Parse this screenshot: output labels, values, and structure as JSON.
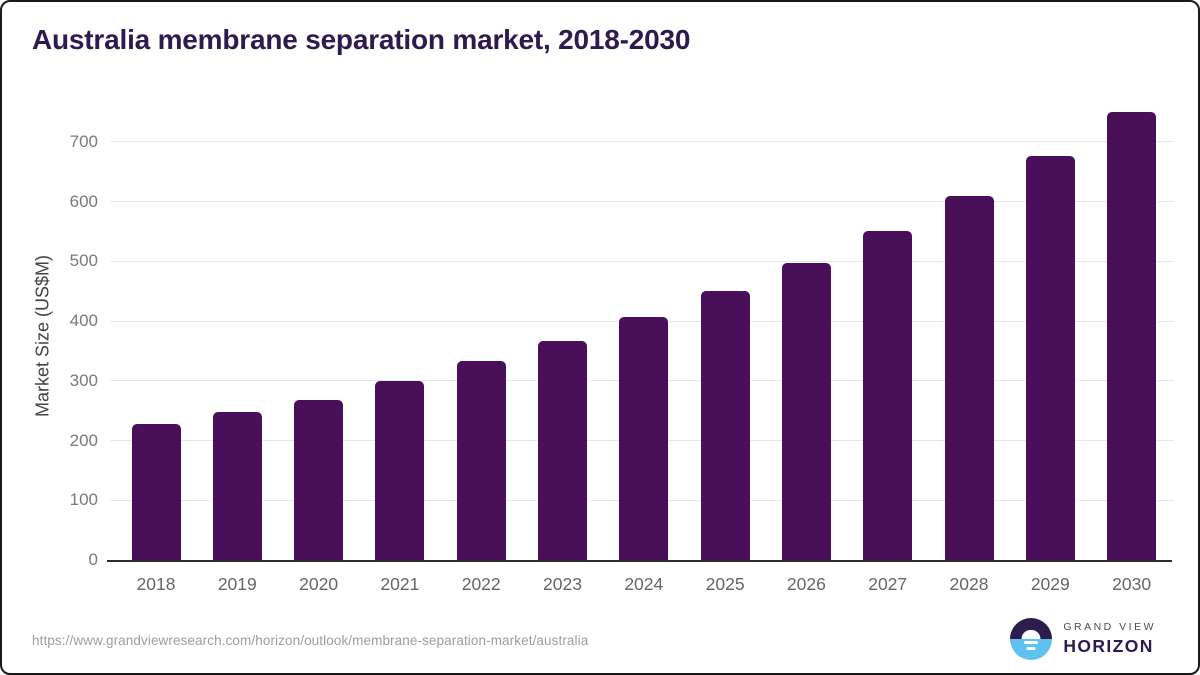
{
  "title": "Australia membrane separation market, 2018-2030",
  "source_url": "https://www.grandviewresearch.com/horizon/outlook/membrane-separation-market/australia",
  "logo": {
    "top_text": "GRAND VIEW",
    "bottom_text": "HORIZON"
  },
  "colors": {
    "bar": "#491059",
    "title_text": "#2e1a4d",
    "grid": "#e7e7e7",
    "axis_line": "#2b2b2b",
    "tick_text": "#7a7a7a",
    "xlabel_text": "#666666",
    "url_text": "#9e9e9e",
    "logo_dark": "#2d1d4e",
    "logo_blue": "#5ec1ee"
  },
  "chart_data": {
    "type": "bar",
    "title": "Australia membrane separation market, 2018-2030",
    "categories": [
      "2018",
      "2019",
      "2020",
      "2021",
      "2022",
      "2023",
      "2024",
      "2025",
      "2026",
      "2027",
      "2028",
      "2029",
      "2030"
    ],
    "values": [
      227,
      248,
      268,
      300,
      333,
      367,
      406,
      450,
      498,
      551,
      610,
      677,
      750
    ],
    "xlabel": "",
    "ylabel": "Market Size (US$M)",
    "ylim": [
      0,
      750
    ],
    "yticks": [
      0,
      100,
      200,
      300,
      400,
      500,
      600,
      700
    ],
    "grid": true,
    "legend": false,
    "bar_color": "#491059"
  }
}
